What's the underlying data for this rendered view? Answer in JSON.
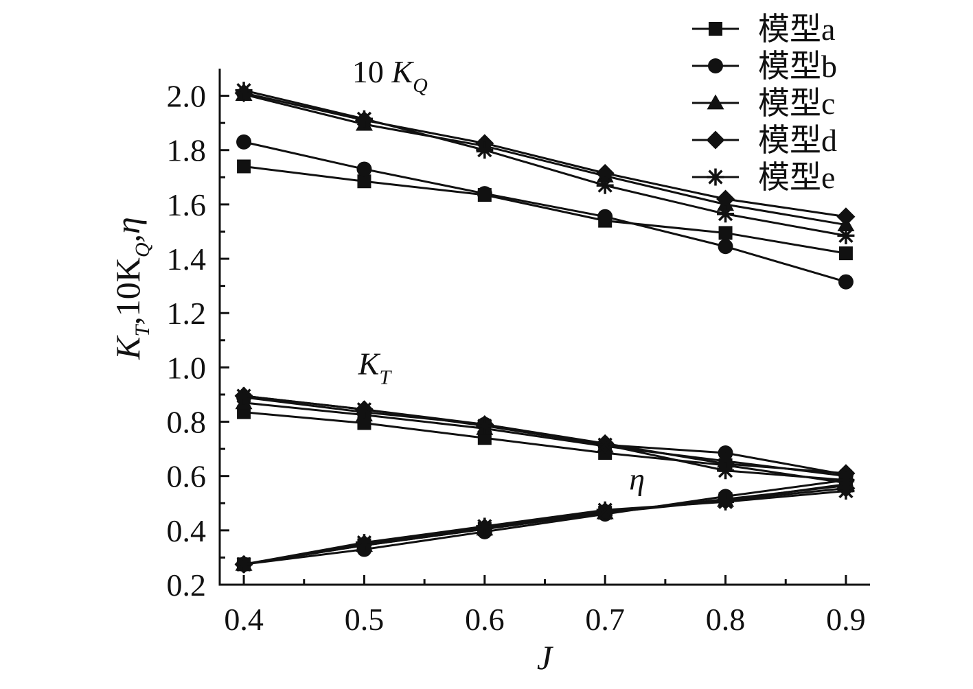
{
  "chart_data": {
    "type": "line",
    "xlabel": "J",
    "ylabel": {
      "parts": [
        "K",
        "T",
        ",10K",
        "Q",
        ",η"
      ]
    },
    "xlim": [
      0.38,
      0.92
    ],
    "ylim": [
      0.2,
      2.1
    ],
    "x_ticks": [
      0.4,
      0.5,
      0.6,
      0.7,
      0.8,
      0.9
    ],
    "x_tick_labels": [
      "0.4",
      "0.5",
      "0.6",
      "0.7",
      "0.8",
      "0.9"
    ],
    "y_ticks": [
      0.2,
      0.4,
      0.6,
      0.8,
      1.0,
      1.2,
      1.4,
      1.6,
      1.8,
      2.0
    ],
    "y_tick_labels": [
      "0.2",
      "0.4",
      "0.6",
      "0.8",
      "1.0",
      "1.2",
      "1.4",
      "1.6",
      "1.8",
      "2.0"
    ],
    "grid": false,
    "legend_position": "top-right",
    "annotations": {
      "kq": {
        "prefix": "10 ",
        "main": "K",
        "sub": "Q",
        "x": 0.49,
        "y": 2.05
      },
      "kt": {
        "main": "K",
        "sub": "T",
        "x": 0.495,
        "y": 0.975
      },
      "eta": {
        "main": "η",
        "x": 0.72,
        "y": 0.55
      }
    },
    "x": [
      0.4,
      0.5,
      0.6,
      0.7,
      0.8,
      0.9
    ],
    "series": [
      {
        "name": "模型a",
        "marker": "square",
        "kq10": [
          1.74,
          1.685,
          1.635,
          1.54,
          1.495,
          1.42
        ],
        "kt": [
          0.835,
          0.795,
          0.74,
          0.685,
          0.64,
          0.575
        ],
        "eta": [
          0.275,
          0.345,
          0.405,
          0.465,
          0.515,
          0.565
        ]
      },
      {
        "name": "模型b",
        "marker": "circle",
        "kq10": [
          1.83,
          1.73,
          1.64,
          1.555,
          1.445,
          1.315
        ],
        "kt": [
          0.89,
          0.835,
          0.79,
          0.715,
          0.685,
          0.605
        ],
        "eta": [
          0.275,
          0.33,
          0.395,
          0.46,
          0.525,
          0.585
        ]
      },
      {
        "name": "模型c",
        "marker": "triangle",
        "kq10": [
          2.005,
          1.895,
          1.815,
          1.705,
          1.6,
          1.525
        ],
        "kt": [
          0.87,
          0.825,
          0.775,
          0.71,
          0.655,
          0.6
        ],
        "eta": [
          0.275,
          0.345,
          0.405,
          0.465,
          0.51,
          0.57
        ]
      },
      {
        "name": "模型d",
        "marker": "diamond",
        "kq10": [
          2.01,
          1.91,
          1.825,
          1.715,
          1.62,
          1.555
        ],
        "kt": [
          0.895,
          0.845,
          0.79,
          0.72,
          0.645,
          0.61
        ],
        "eta": [
          0.275,
          0.35,
          0.41,
          0.47,
          0.51,
          0.555
        ]
      },
      {
        "name": "模型e",
        "marker": "asterisk",
        "kq10": [
          2.02,
          1.915,
          1.8,
          1.67,
          1.565,
          1.485
        ],
        "kt": [
          0.895,
          0.845,
          0.785,
          0.715,
          0.62,
          0.585
        ],
        "eta": [
          0.275,
          0.355,
          0.415,
          0.475,
          0.505,
          0.545
        ]
      }
    ]
  }
}
